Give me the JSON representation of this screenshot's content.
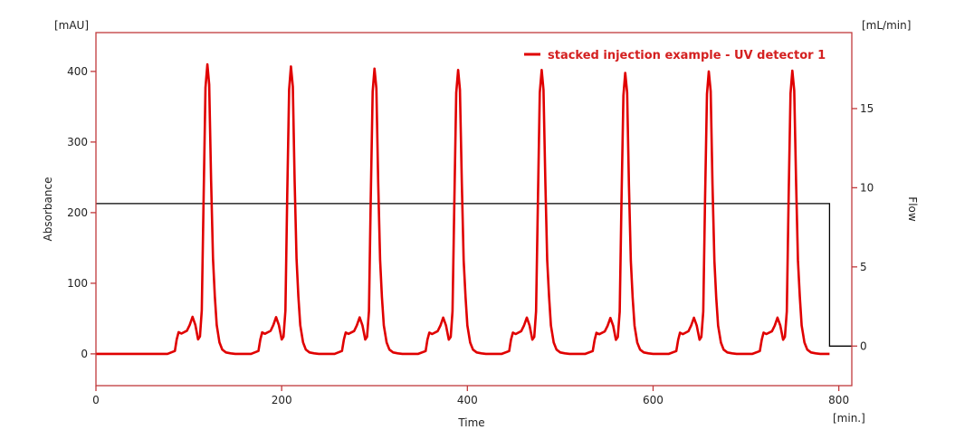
{
  "chart_data": {
    "type": "line",
    "title": "",
    "legend": {
      "position": "top-right (inside plot)",
      "entries": [
        "stacked injection example - UV detector 1"
      ]
    },
    "xlabel": "Time",
    "x_unit": "[min.]",
    "xlim": [
      0,
      814
    ],
    "x_ticks": [
      0,
      200,
      400,
      600,
      800
    ],
    "ylabel": "Absorbance",
    "y_unit": "[mAU]",
    "ylim": [
      -45,
      455
    ],
    "y_ticks": [
      0,
      100,
      200,
      300,
      400
    ],
    "y2label": "Flow",
    "y2_unit": "[mL/min]",
    "y2lim": [
      -2.5,
      19.8
    ],
    "y2_ticks": [
      0,
      5,
      10,
      15
    ],
    "grid": false,
    "series": [
      {
        "name": "stacked injection example - UV detector 1",
        "axis": "left",
        "color": "#e00000",
        "peak_times": [
          120,
          210,
          300,
          390,
          480,
          570,
          660,
          750
        ],
        "peak_heights": [
          410,
          407,
          404,
          402,
          402,
          398,
          400,
          401
        ],
        "peak_profile_offsets": [
          -43,
          -35,
          -33,
          -31,
          -28,
          -22,
          -19,
          -16,
          -13,
          -10,
          -8,
          -6,
          -4,
          -2,
          0,
          2,
          4,
          6,
          8,
          10,
          13,
          16,
          20,
          25,
          30
        ],
        "peak_profile_fraction": [
          0,
          0.01,
          0.05,
          0.075,
          0.07,
          0.08,
          0.1,
          0.128,
          0.1,
          0.05,
          0.06,
          0.15,
          0.55,
          0.92,
          1.0,
          0.93,
          0.6,
          0.33,
          0.2,
          0.1,
          0.04,
          0.015,
          0.005,
          0.002,
          0
        ],
        "baseline": 0,
        "end_time": 790
      },
      {
        "name": "Flow",
        "axis": "right",
        "color": "#000000",
        "x": [
          0,
          790,
          790,
          814
        ],
        "values": [
          9,
          9,
          0,
          0
        ]
      }
    ]
  },
  "axes": {
    "left_unit": "[mAU]",
    "right_unit": "[mL/min]",
    "bottom_unit": "[min.]",
    "left_title": "Absorbance",
    "right_title": "Flow",
    "bottom_title": "Time"
  },
  "legend_label": "stacked injection example - UV detector 1",
  "colors": {
    "frame": "#c0393b",
    "trace": "#e00000",
    "flow": "#000000",
    "legend_text": "#d42020"
  }
}
